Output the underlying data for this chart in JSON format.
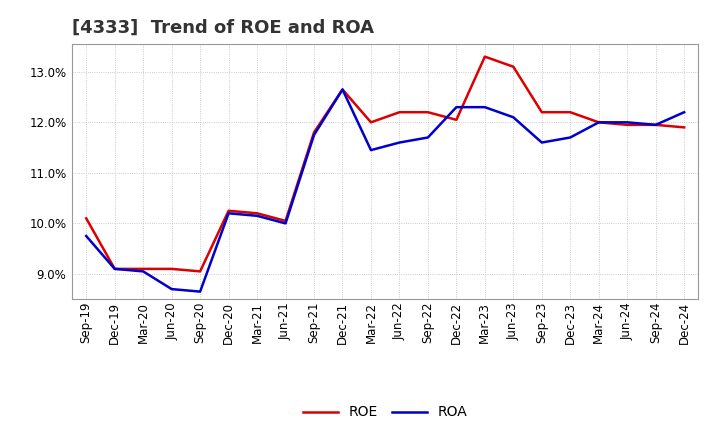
{
  "title": "[4333]  Trend of ROE and ROA",
  "labels": [
    "Sep-19",
    "Dec-19",
    "Mar-20",
    "Jun-20",
    "Sep-20",
    "Dec-20",
    "Mar-21",
    "Jun-21",
    "Sep-21",
    "Dec-21",
    "Mar-22",
    "Jun-22",
    "Sep-22",
    "Dec-22",
    "Mar-23",
    "Jun-23",
    "Sep-23",
    "Dec-23",
    "Mar-24",
    "Jun-24",
    "Sep-24",
    "Dec-24"
  ],
  "ROE": [
    10.1,
    9.1,
    9.1,
    9.1,
    9.05,
    10.25,
    10.2,
    10.05,
    11.8,
    12.65,
    12.0,
    12.2,
    12.2,
    12.05,
    13.3,
    13.1,
    12.2,
    12.2,
    12.0,
    11.95,
    11.95,
    11.9
  ],
  "ROA": [
    9.75,
    9.1,
    9.05,
    8.7,
    8.65,
    10.2,
    10.15,
    10.0,
    11.75,
    12.65,
    11.45,
    11.6,
    11.7,
    12.3,
    12.3,
    12.1,
    11.6,
    11.7,
    12.0,
    12.0,
    11.95,
    12.2
  ],
  "roe_color": "#dd0000",
  "roa_color": "#0000cc",
  "background_color": "#ffffff",
  "plot_bg_color": "#ffffff",
  "grid_color": "#bbbbbb",
  "ylim": [
    8.5,
    13.55
  ],
  "yticks": [
    9.0,
    10.0,
    11.0,
    12.0,
    13.0
  ],
  "title_fontsize": 13,
  "title_color": "#333333",
  "legend_fontsize": 10,
  "tick_fontsize": 8.5,
  "line_width": 1.8
}
